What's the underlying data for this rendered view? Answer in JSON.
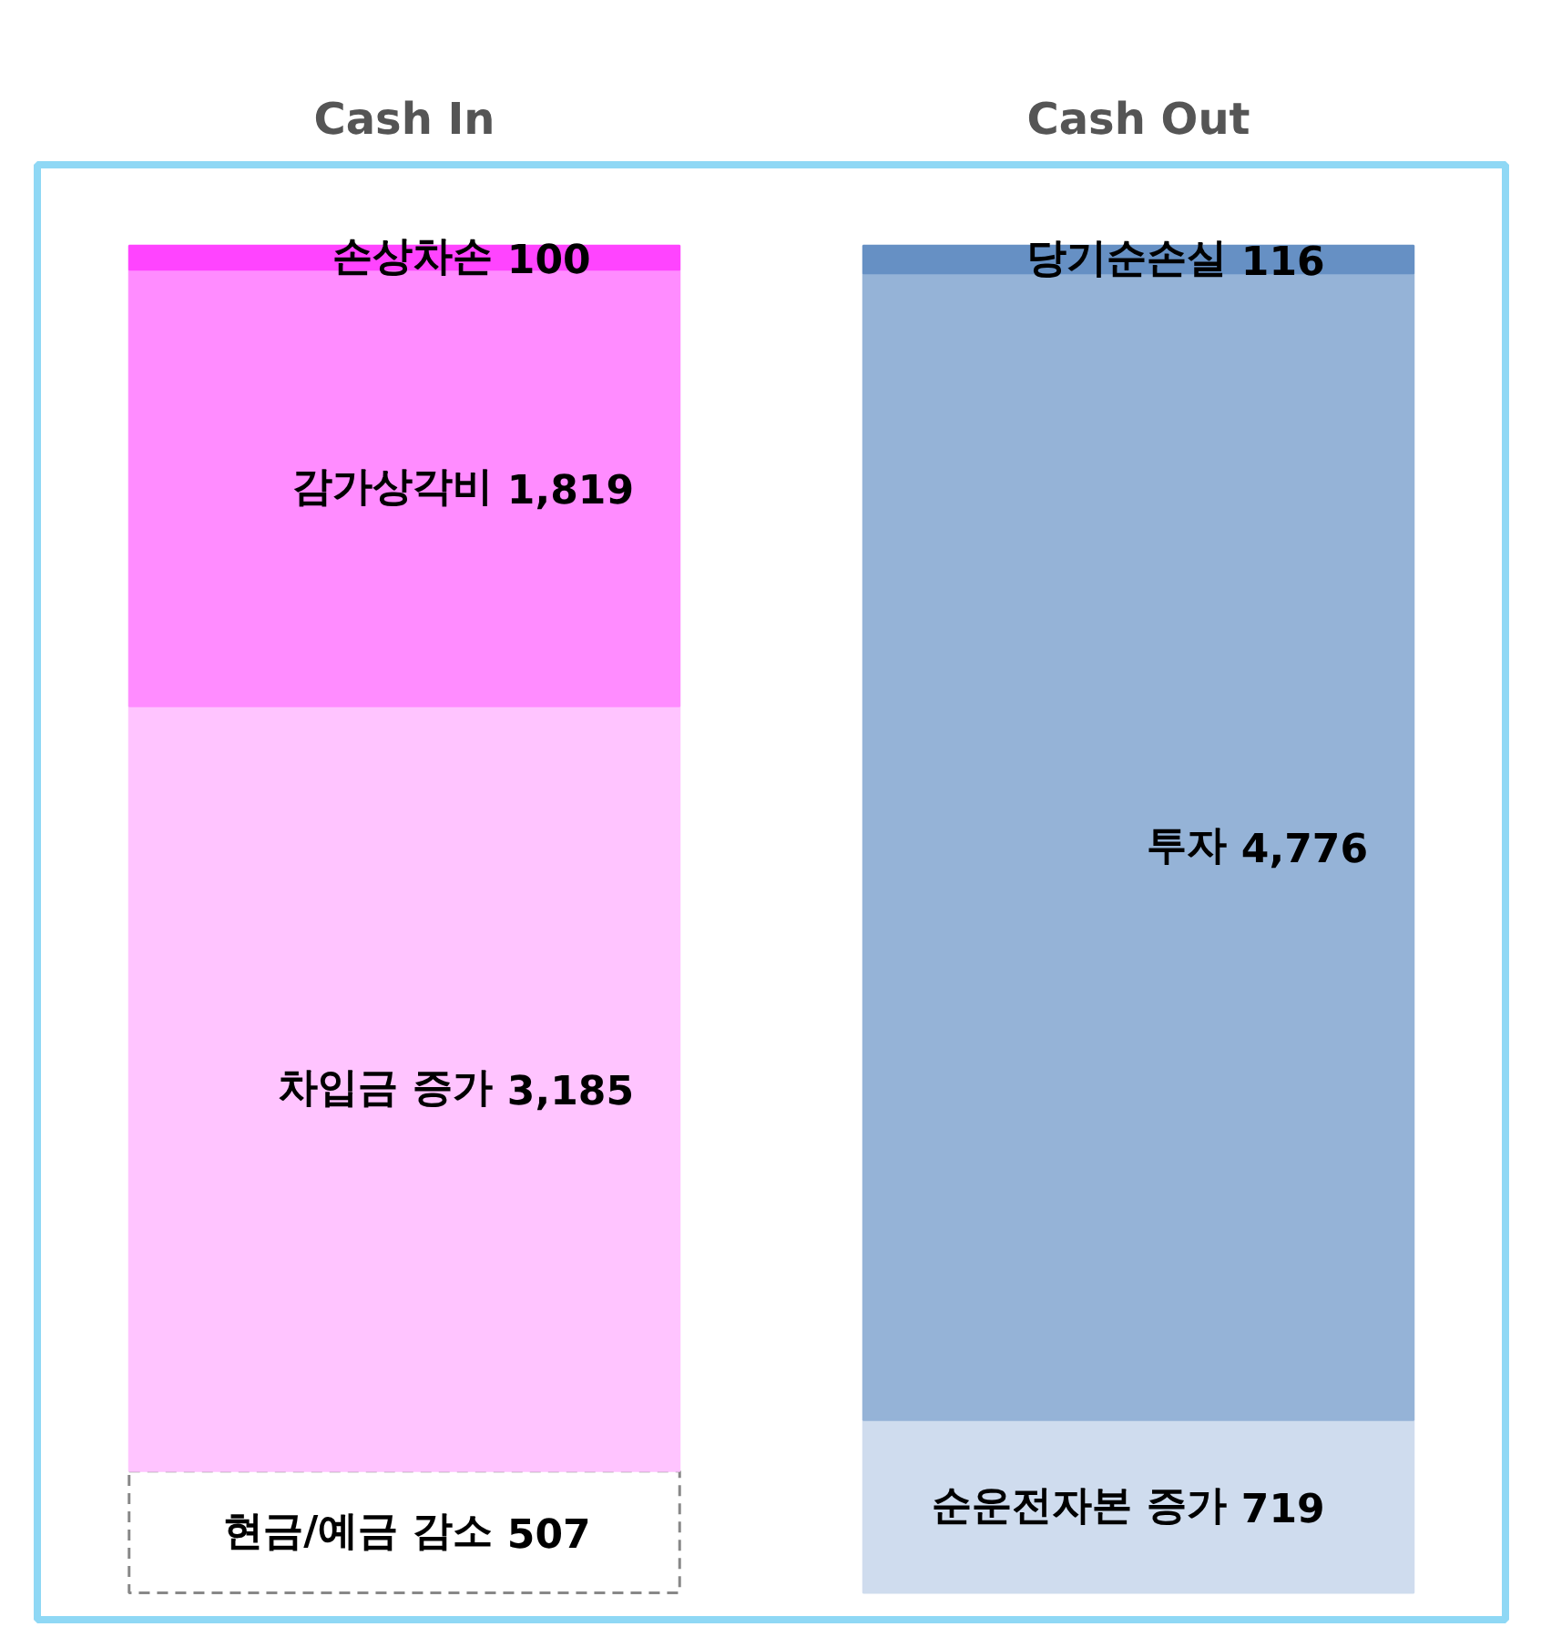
{
  "chart_data": {
    "type": "bar",
    "stacked": true,
    "categories": [
      "Cash In",
      "Cash Out"
    ],
    "legend": false,
    "tick_labels": "x",
    "series": [
      {
        "name": "현금/예금 감소",
        "color": "#ffffff",
        "values": [
          507,
          null
        ],
        "value_labels": [
          "507",
          null
        ]
      },
      {
        "name": "순운전자본 증가",
        "color": "#cfdcee",
        "values": [
          null,
          719
        ],
        "value_labels": [
          null,
          "719"
        ]
      },
      {
        "name": "차입금 증가",
        "color": "#ffc4ff",
        "values": [
          3185,
          null
        ],
        "value_labels": [
          "3,185",
          null
        ]
      },
      {
        "name": "투자",
        "color": "#95b3d7",
        "values": [
          null,
          4776
        ],
        "value_labels": [
          null,
          "4,776"
        ]
      },
      {
        "name": "감가상각비",
        "color": "#ff8cff",
        "values": [
          1819,
          null
        ],
        "value_labels": [
          "1,819",
          null
        ]
      },
      {
        "name": "손상차손",
        "color": "#ff44ff",
        "values": [
          100,
          null
        ],
        "value_labels": [
          "100",
          null
        ]
      },
      {
        "name": "당기순손실",
        "color": "#6690c4",
        "values": [
          null,
          116
        ],
        "value_labels": [
          null,
          "116"
        ]
      }
    ]
  }
}
